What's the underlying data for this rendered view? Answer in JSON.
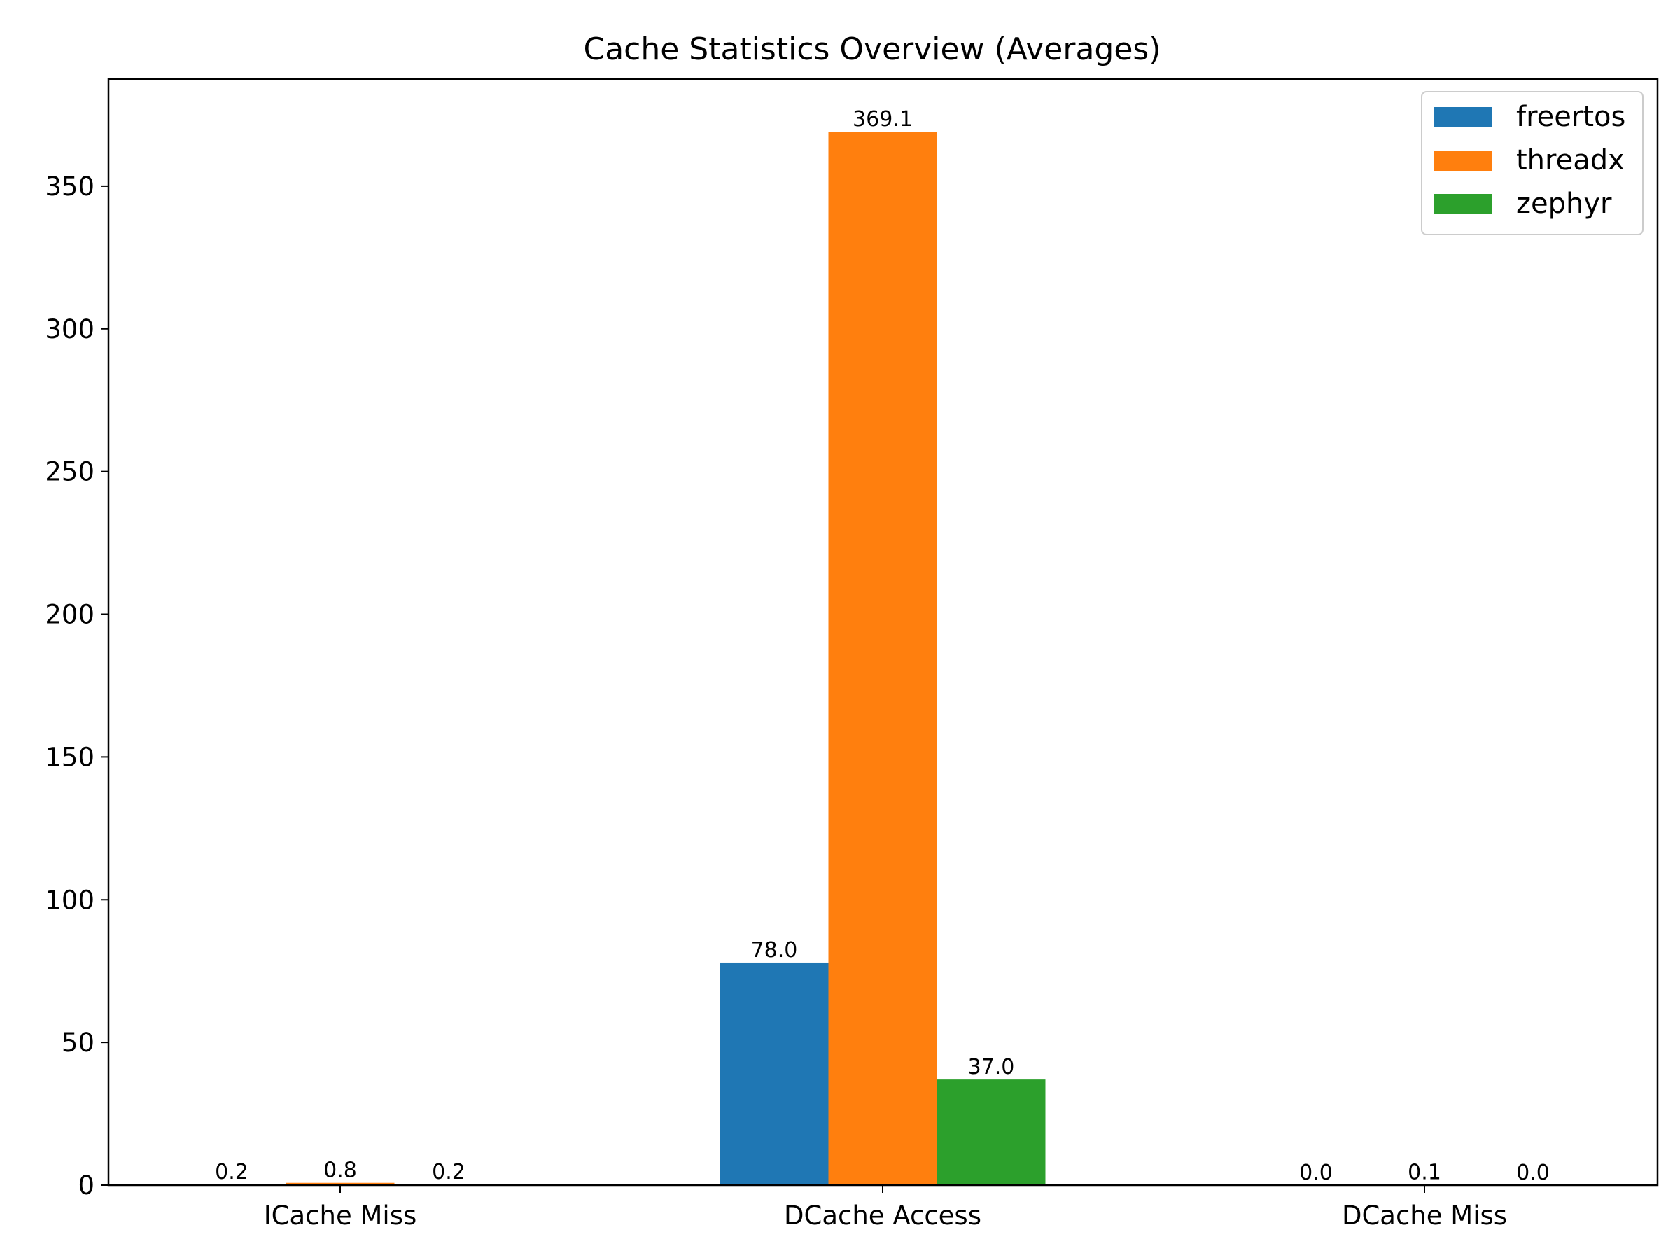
{
  "chart_data": {
    "type": "bar",
    "title": "Cache Statistics Overview (Averages)",
    "xlabel": "",
    "ylabel": "",
    "categories": [
      "ICache Miss",
      "DCache Access",
      "DCache Miss"
    ],
    "series": [
      {
        "name": "freertos",
        "color": "#1f77b4",
        "values": [
          0.2,
          78.0,
          0.0
        ],
        "labels": [
          "0.2",
          "78.0",
          "0.0"
        ]
      },
      {
        "name": "threadx",
        "color": "#ff7f0e",
        "values": [
          0.8,
          369.1,
          0.1
        ],
        "labels": [
          "0.8",
          "369.1",
          "0.1"
        ]
      },
      {
        "name": "zephyr",
        "color": "#2ca02c",
        "values": [
          0.2,
          37.0,
          0.0
        ],
        "labels": [
          "0.2",
          "37.0",
          "0.0"
        ]
      }
    ],
    "ylim": [
      0,
      387.5
    ],
    "yticks": [
      0,
      50,
      100,
      150,
      200,
      250,
      300,
      350
    ],
    "ytick_labels": [
      "0",
      "50",
      "100",
      "150",
      "200",
      "250",
      "300",
      "350"
    ],
    "grid": false,
    "legend_position": "top-right"
  }
}
